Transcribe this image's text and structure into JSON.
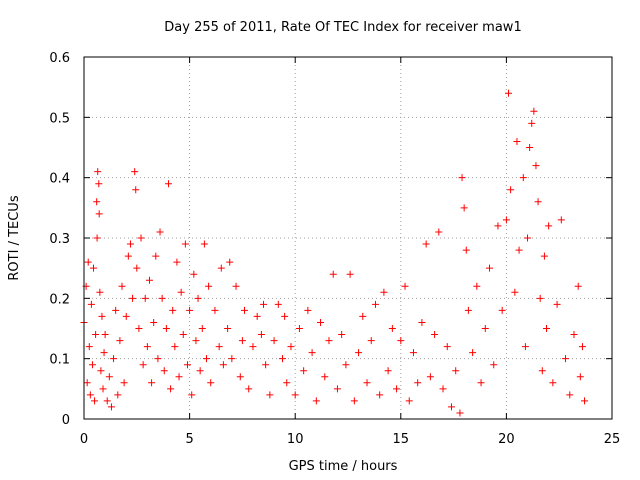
{
  "chart_data": {
    "type": "scatter",
    "title": "Day 255 of 2011, Rate Of TEC Index for receiver maw1",
    "xlabel": "GPS time / hours",
    "ylabel": "ROTI / TECUs",
    "xlim": [
      0,
      25
    ],
    "ylim": [
      0,
      0.6
    ],
    "x_ticks": [
      "0",
      "5",
      "10",
      "15",
      "20",
      "25"
    ],
    "y_ticks": [
      "0",
      "0.1",
      "0.2",
      "0.3",
      "0.4",
      "0.5",
      "0.6"
    ],
    "grid": true,
    "marker": "plus",
    "color": "#ff0000",
    "series": [
      {
        "points": [
          [
            0.0,
            0.16
          ],
          [
            0.1,
            0.22
          ],
          [
            0.15,
            0.06
          ],
          [
            0.2,
            0.26
          ],
          [
            0.25,
            0.12
          ],
          [
            0.3,
            0.04
          ],
          [
            0.35,
            0.19
          ],
          [
            0.4,
            0.09
          ],
          [
            0.45,
            0.25
          ],
          [
            0.5,
            0.03
          ],
          [
            0.55,
            0.14
          ],
          [
            0.6,
            0.36
          ],
          [
            0.62,
            0.3
          ],
          [
            0.65,
            0.41
          ],
          [
            0.7,
            0.39
          ],
          [
            0.72,
            0.34
          ],
          [
            0.75,
            0.21
          ],
          [
            0.8,
            0.08
          ],
          [
            0.85,
            0.17
          ],
          [
            0.9,
            0.05
          ],
          [
            0.95,
            0.11
          ],
          [
            1.0,
            0.14
          ],
          [
            1.1,
            0.03
          ],
          [
            1.2,
            0.07
          ],
          [
            1.3,
            0.02
          ],
          [
            1.4,
            0.1
          ],
          [
            1.5,
            0.18
          ],
          [
            1.6,
            0.04
          ],
          [
            1.7,
            0.13
          ],
          [
            1.8,
            0.22
          ],
          [
            1.9,
            0.06
          ],
          [
            2.0,
            0.17
          ],
          [
            2.1,
            0.27
          ],
          [
            2.2,
            0.29
          ],
          [
            2.3,
            0.2
          ],
          [
            2.4,
            0.41
          ],
          [
            2.45,
            0.38
          ],
          [
            2.5,
            0.25
          ],
          [
            2.6,
            0.15
          ],
          [
            2.7,
            0.3
          ],
          [
            2.8,
            0.09
          ],
          [
            2.9,
            0.2
          ],
          [
            3.0,
            0.12
          ],
          [
            3.1,
            0.23
          ],
          [
            3.2,
            0.06
          ],
          [
            3.3,
            0.16
          ],
          [
            3.4,
            0.27
          ],
          [
            3.5,
            0.1
          ],
          [
            3.6,
            0.31
          ],
          [
            3.7,
            0.2
          ],
          [
            3.8,
            0.08
          ],
          [
            3.9,
            0.15
          ],
          [
            4.0,
            0.39
          ],
          [
            4.1,
            0.05
          ],
          [
            4.2,
            0.18
          ],
          [
            4.3,
            0.12
          ],
          [
            4.4,
            0.26
          ],
          [
            4.5,
            0.07
          ],
          [
            4.6,
            0.21
          ],
          [
            4.7,
            0.14
          ],
          [
            4.8,
            0.29
          ],
          [
            4.9,
            0.09
          ],
          [
            5.0,
            0.18
          ],
          [
            5.1,
            0.04
          ],
          [
            5.2,
            0.24
          ],
          [
            5.3,
            0.13
          ],
          [
            5.4,
            0.2
          ],
          [
            5.5,
            0.08
          ],
          [
            5.6,
            0.15
          ],
          [
            5.7,
            0.29
          ],
          [
            5.8,
            0.1
          ],
          [
            5.9,
            0.22
          ],
          [
            6.0,
            0.06
          ],
          [
            6.2,
            0.18
          ],
          [
            6.4,
            0.12
          ],
          [
            6.5,
            0.25
          ],
          [
            6.6,
            0.09
          ],
          [
            6.8,
            0.15
          ],
          [
            6.9,
            0.26
          ],
          [
            7.0,
            0.1
          ],
          [
            7.2,
            0.22
          ],
          [
            7.4,
            0.07
          ],
          [
            7.5,
            0.13
          ],
          [
            7.6,
            0.18
          ],
          [
            7.8,
            0.05
          ],
          [
            8.0,
            0.12
          ],
          [
            8.2,
            0.17
          ],
          [
            8.4,
            0.14
          ],
          [
            8.5,
            0.19
          ],
          [
            8.6,
            0.09
          ],
          [
            8.8,
            0.04
          ],
          [
            9.0,
            0.13
          ],
          [
            9.2,
            0.19
          ],
          [
            9.4,
            0.1
          ],
          [
            9.5,
            0.17
          ],
          [
            9.6,
            0.06
          ],
          [
            9.8,
            0.12
          ],
          [
            10.0,
            0.04
          ],
          [
            10.2,
            0.15
          ],
          [
            10.4,
            0.08
          ],
          [
            10.6,
            0.18
          ],
          [
            10.8,
            0.11
          ],
          [
            11.0,
            0.03
          ],
          [
            11.2,
            0.16
          ],
          [
            11.4,
            0.07
          ],
          [
            11.6,
            0.13
          ],
          [
            11.8,
            0.24
          ],
          [
            12.0,
            0.05
          ],
          [
            12.2,
            0.14
          ],
          [
            12.4,
            0.09
          ],
          [
            12.6,
            0.24
          ],
          [
            12.8,
            0.03
          ],
          [
            13.0,
            0.11
          ],
          [
            13.2,
            0.17
          ],
          [
            13.4,
            0.06
          ],
          [
            13.6,
            0.13
          ],
          [
            13.8,
            0.19
          ],
          [
            14.0,
            0.04
          ],
          [
            14.2,
            0.21
          ],
          [
            14.4,
            0.08
          ],
          [
            14.6,
            0.15
          ],
          [
            14.8,
            0.05
          ],
          [
            15.0,
            0.13
          ],
          [
            15.2,
            0.22
          ],
          [
            15.4,
            0.03
          ],
          [
            15.6,
            0.11
          ],
          [
            15.8,
            0.06
          ],
          [
            16.0,
            0.16
          ],
          [
            16.2,
            0.29
          ],
          [
            16.4,
            0.07
          ],
          [
            16.6,
            0.14
          ],
          [
            16.8,
            0.31
          ],
          [
            17.0,
            0.05
          ],
          [
            17.2,
            0.12
          ],
          [
            17.4,
            0.02
          ],
          [
            17.6,
            0.08
          ],
          [
            17.8,
            0.01
          ],
          [
            17.9,
            0.4
          ],
          [
            18.0,
            0.35
          ],
          [
            18.1,
            0.28
          ],
          [
            18.2,
            0.18
          ],
          [
            18.4,
            0.11
          ],
          [
            18.6,
            0.22
          ],
          [
            18.8,
            0.06
          ],
          [
            19.0,
            0.15
          ],
          [
            19.2,
            0.25
          ],
          [
            19.4,
            0.09
          ],
          [
            19.6,
            0.32
          ],
          [
            19.8,
            0.18
          ],
          [
            20.0,
            0.33
          ],
          [
            20.1,
            0.54
          ],
          [
            20.2,
            0.38
          ],
          [
            20.4,
            0.21
          ],
          [
            20.5,
            0.46
          ],
          [
            20.6,
            0.28
          ],
          [
            20.8,
            0.4
          ],
          [
            20.9,
            0.12
          ],
          [
            21.0,
            0.3
          ],
          [
            21.1,
            0.45
          ],
          [
            21.2,
            0.49
          ],
          [
            21.3,
            0.51
          ],
          [
            21.4,
            0.42
          ],
          [
            21.5,
            0.36
          ],
          [
            21.6,
            0.2
          ],
          [
            21.7,
            0.08
          ],
          [
            21.8,
            0.27
          ],
          [
            21.9,
            0.15
          ],
          [
            22.0,
            0.32
          ],
          [
            22.2,
            0.06
          ],
          [
            22.4,
            0.19
          ],
          [
            22.6,
            0.33
          ],
          [
            22.8,
            0.1
          ],
          [
            23.0,
            0.04
          ],
          [
            23.2,
            0.14
          ],
          [
            23.4,
            0.22
          ],
          [
            23.5,
            0.07
          ],
          [
            23.6,
            0.12
          ],
          [
            23.7,
            0.03
          ]
        ]
      }
    ]
  }
}
